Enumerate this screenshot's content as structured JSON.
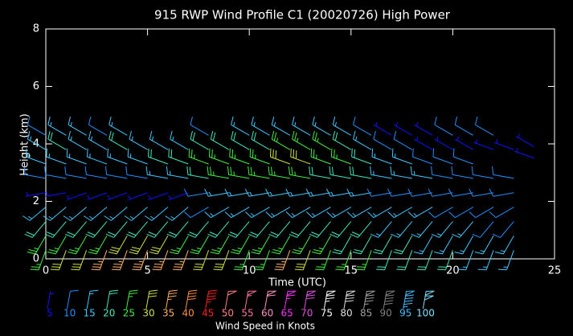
{
  "chart_data": {
    "type": "wind-barb",
    "title": "915 RWP Wind Profile C1 (20020726) High Power",
    "x_label": "Time (UTC)",
    "y_label": "Height (km)",
    "xlim": [
      0,
      25
    ],
    "xticks": [
      0,
      5,
      10,
      15,
      20,
      25
    ],
    "ylim": [
      0,
      8
    ],
    "yticks": [
      0,
      2,
      4,
      6,
      8
    ],
    "legend_title": "Wind Speed in Knots",
    "legend": [
      {
        "value": 5,
        "color": "#1010ff"
      },
      {
        "value": 10,
        "color": "#2090ff"
      },
      {
        "value": 15,
        "color": "#40c8ff"
      },
      {
        "value": 20,
        "color": "#40e8c0"
      },
      {
        "value": 25,
        "color": "#40f040"
      },
      {
        "value": 30,
        "color": "#d0e040"
      },
      {
        "value": 35,
        "color": "#ffb060"
      },
      {
        "value": 40,
        "color": "#ff9040"
      },
      {
        "value": 45,
        "color": "#ff2020"
      },
      {
        "value": 50,
        "color": "#ff8080"
      },
      {
        "value": 55,
        "color": "#ff70a0"
      },
      {
        "value": 60,
        "color": "#ff90c0"
      },
      {
        "value": 65,
        "color": "#ff30ff"
      },
      {
        "value": 70,
        "color": "#e050e0"
      },
      {
        "value": 75,
        "color": "#ffffff"
      },
      {
        "value": 80,
        "color": "#e0e0e0"
      },
      {
        "value": 85,
        "color": "#a0a0a0"
      },
      {
        "value": 90,
        "color": "#808080"
      },
      {
        "value": 95,
        "color": "#40c0ff"
      },
      {
        "value": 100,
        "color": "#80e0ff"
      }
    ],
    "columns": [
      {
        "x": 0,
        "levels": [
          [
            0.3,
            25,
            200
          ],
          [
            0.8,
            25,
            210
          ],
          [
            1.3,
            20,
            220
          ],
          [
            1.8,
            15,
            230
          ],
          [
            2.3,
            5,
            260
          ],
          [
            2.8,
            10,
            280
          ],
          [
            3.3,
            15,
            290
          ],
          [
            3.8,
            15,
            300
          ],
          [
            4.3,
            10,
            300
          ]
        ]
      },
      {
        "x": 1,
        "levels": [
          [
            0.3,
            30,
            200
          ],
          [
            0.8,
            25,
            210
          ],
          [
            1.3,
            20,
            220
          ],
          [
            1.8,
            15,
            230
          ],
          [
            2.3,
            5,
            260
          ],
          [
            2.8,
            10,
            280
          ],
          [
            3.3,
            15,
            290
          ],
          [
            3.8,
            20,
            300
          ],
          [
            4.3,
            15,
            300
          ]
        ]
      },
      {
        "x": 2,
        "levels": [
          [
            0.3,
            30,
            200
          ],
          [
            0.8,
            25,
            210
          ],
          [
            1.3,
            20,
            220
          ],
          [
            1.8,
            15,
            230
          ],
          [
            2.3,
            5,
            250
          ],
          [
            2.8,
            10,
            280
          ],
          [
            3.3,
            15,
            290
          ],
          [
            3.8,
            15,
            300
          ],
          [
            4.3,
            15,
            300
          ]
        ]
      },
      {
        "x": 3,
        "levels": [
          [
            0.3,
            35,
            200
          ],
          [
            0.8,
            25,
            210
          ],
          [
            1.3,
            20,
            220
          ],
          [
            1.8,
            15,
            230
          ],
          [
            2.3,
            5,
            250
          ],
          [
            2.8,
            10,
            280
          ],
          [
            3.3,
            15,
            290
          ],
          [
            3.8,
            15,
            300
          ],
          [
            4.3,
            10,
            300
          ]
        ]
      },
      {
        "x": 4,
        "levels": [
          [
            0.3,
            35,
            200
          ],
          [
            0.8,
            30,
            210
          ],
          [
            1.3,
            20,
            220
          ],
          [
            1.8,
            15,
            230
          ],
          [
            2.3,
            5,
            250
          ],
          [
            2.8,
            10,
            280
          ],
          [
            3.3,
            15,
            290
          ],
          [
            3.8,
            20,
            300
          ],
          [
            4.3,
            15,
            300
          ]
        ]
      },
      {
        "x": 5,
        "levels": [
          [
            0.3,
            35,
            200
          ],
          [
            0.8,
            30,
            210
          ],
          [
            1.3,
            20,
            220
          ],
          [
            1.8,
            15,
            230
          ],
          [
            2.3,
            5,
            250
          ],
          [
            2.8,
            10,
            280
          ],
          [
            3.3,
            15,
            290
          ],
          [
            3.8,
            15,
            300
          ]
        ]
      },
      {
        "x": 6,
        "levels": [
          [
            0.3,
            35,
            200
          ],
          [
            0.8,
            30,
            210
          ],
          [
            1.3,
            20,
            220
          ],
          [
            1.8,
            15,
            230
          ],
          [
            2.3,
            5,
            250
          ],
          [
            2.8,
            15,
            280
          ],
          [
            3.3,
            20,
            290
          ],
          [
            3.8,
            15,
            300
          ]
        ]
      },
      {
        "x": 7,
        "levels": [
          [
            0.3,
            35,
            200
          ],
          [
            0.8,
            25,
            210
          ],
          [
            1.3,
            20,
            220
          ],
          [
            1.8,
            15,
            230
          ],
          [
            2.3,
            5,
            250
          ],
          [
            2.8,
            15,
            280
          ],
          [
            3.3,
            20,
            290
          ],
          [
            3.8,
            15,
            300
          ]
        ]
      },
      {
        "x": 8,
        "levels": [
          [
            0.3,
            30,
            200
          ],
          [
            0.8,
            25,
            210
          ],
          [
            1.3,
            20,
            220
          ],
          [
            1.8,
            10,
            240
          ],
          [
            2.3,
            10,
            260
          ],
          [
            2.8,
            20,
            280
          ],
          [
            3.3,
            25,
            290
          ],
          [
            3.8,
            20,
            300
          ],
          [
            4.3,
            10,
            300
          ]
        ]
      },
      {
        "x": 9,
        "levels": [
          [
            0.3,
            30,
            200
          ],
          [
            0.8,
            25,
            210
          ],
          [
            1.3,
            20,
            220
          ],
          [
            1.8,
            15,
            240
          ],
          [
            2.3,
            15,
            260
          ],
          [
            2.8,
            25,
            280
          ],
          [
            3.3,
            25,
            290
          ],
          [
            3.8,
            20,
            300
          ]
        ]
      },
      {
        "x": 10,
        "levels": [
          [
            0.3,
            25,
            200
          ],
          [
            0.8,
            25,
            210
          ],
          [
            1.3,
            20,
            220
          ],
          [
            1.8,
            15,
            240
          ],
          [
            2.3,
            15,
            260
          ],
          [
            2.8,
            25,
            280
          ],
          [
            3.3,
            25,
            290
          ],
          [
            3.8,
            20,
            300
          ],
          [
            4.3,
            15,
            300
          ]
        ]
      },
      {
        "x": 11,
        "levels": [
          [
            0.3,
            25,
            200
          ],
          [
            0.8,
            25,
            210
          ],
          [
            1.3,
            20,
            220
          ],
          [
            1.8,
            15,
            240
          ],
          [
            2.3,
            15,
            260
          ],
          [
            2.8,
            25,
            280
          ],
          [
            3.3,
            25,
            290
          ],
          [
            3.8,
            20,
            300
          ],
          [
            4.3,
            15,
            300
          ]
        ]
      },
      {
        "x": 12,
        "levels": [
          [
            0.3,
            35,
            200
          ],
          [
            0.8,
            25,
            210
          ],
          [
            1.3,
            20,
            220
          ],
          [
            1.8,
            15,
            240
          ],
          [
            2.3,
            15,
            260
          ],
          [
            2.8,
            25,
            280
          ],
          [
            3.3,
            30,
            290
          ],
          [
            3.8,
            25,
            300
          ],
          [
            4.3,
            15,
            300
          ]
        ]
      },
      {
        "x": 13,
        "levels": [
          [
            0.3,
            30,
            200
          ],
          [
            0.8,
            25,
            210
          ],
          [
            1.3,
            20,
            220
          ],
          [
            1.8,
            15,
            240
          ],
          [
            2.3,
            15,
            260
          ],
          [
            2.8,
            25,
            280
          ],
          [
            3.3,
            30,
            290
          ],
          [
            3.8,
            25,
            300
          ],
          [
            4.3,
            15,
            300
          ]
        ]
      },
      {
        "x": 14,
        "levels": [
          [
            0.3,
            25,
            200
          ],
          [
            0.8,
            25,
            210
          ],
          [
            1.3,
            20,
            220
          ],
          [
            1.8,
            15,
            240
          ],
          [
            2.3,
            15,
            260
          ],
          [
            2.8,
            20,
            280
          ],
          [
            3.3,
            25,
            290
          ],
          [
            3.8,
            25,
            300
          ],
          [
            4.3,
            15,
            300
          ]
        ]
      },
      {
        "x": 15,
        "levels": [
          [
            0.3,
            25,
            200
          ],
          [
            0.8,
            20,
            210
          ],
          [
            1.3,
            20,
            220
          ],
          [
            1.8,
            15,
            240
          ],
          [
            2.3,
            15,
            260
          ],
          [
            2.8,
            20,
            280
          ],
          [
            3.3,
            25,
            290
          ],
          [
            3.8,
            20,
            300
          ],
          [
            4.3,
            15,
            300
          ]
        ]
      },
      {
        "x": 16,
        "levels": [
          [
            0.3,
            25,
            200
          ],
          [
            0.8,
            20,
            210
          ],
          [
            1.3,
            20,
            220
          ],
          [
            1.8,
            15,
            240
          ],
          [
            2.3,
            15,
            260
          ],
          [
            2.8,
            20,
            280
          ],
          [
            3.3,
            20,
            290
          ],
          [
            3.8,
            15,
            300
          ],
          [
            4.3,
            10,
            300
          ]
        ]
      },
      {
        "x": 17,
        "levels": [
          [
            0.3,
            20,
            200
          ],
          [
            0.8,
            20,
            210
          ],
          [
            1.3,
            15,
            220
          ],
          [
            1.8,
            15,
            240
          ],
          [
            2.3,
            10,
            260
          ],
          [
            2.8,
            15,
            280
          ],
          [
            3.3,
            15,
            290
          ],
          [
            3.8,
            10,
            300
          ],
          [
            4.3,
            5,
            300
          ]
        ]
      },
      {
        "x": 18,
        "levels": [
          [
            0.3,
            20,
            200
          ],
          [
            0.8,
            20,
            210
          ],
          [
            1.3,
            15,
            220
          ],
          [
            1.8,
            15,
            240
          ],
          [
            2.3,
            10,
            260
          ],
          [
            2.8,
            15,
            280
          ],
          [
            3.3,
            15,
            290
          ],
          [
            3.8,
            10,
            300
          ],
          [
            4.3,
            5,
            300
          ]
        ]
      },
      {
        "x": 19,
        "levels": [
          [
            0.3,
            20,
            200
          ],
          [
            0.8,
            15,
            210
          ],
          [
            1.3,
            15,
            220
          ],
          [
            1.8,
            15,
            240
          ],
          [
            2.3,
            10,
            260
          ],
          [
            2.8,
            15,
            280
          ],
          [
            3.3,
            10,
            290
          ],
          [
            3.8,
            5,
            300
          ],
          [
            4.3,
            5,
            300
          ]
        ]
      },
      {
        "x": 20,
        "levels": [
          [
            0.3,
            20,
            200
          ],
          [
            0.8,
            15,
            210
          ],
          [
            1.3,
            15,
            220
          ],
          [
            1.8,
            10,
            240
          ],
          [
            2.3,
            10,
            260
          ],
          [
            2.8,
            10,
            280
          ],
          [
            3.3,
            10,
            290
          ],
          [
            3.8,
            5,
            300
          ],
          [
            4.3,
            10,
            300
          ]
        ]
      },
      {
        "x": 21,
        "levels": [
          [
            0.3,
            15,
            200
          ],
          [
            0.8,
            15,
            210
          ],
          [
            1.3,
            15,
            220
          ],
          [
            1.8,
            10,
            240
          ],
          [
            2.3,
            10,
            260
          ],
          [
            2.8,
            10,
            280
          ],
          [
            3.3,
            10,
            290
          ],
          [
            3.8,
            5,
            300
          ],
          [
            4.3,
            10,
            300
          ]
        ]
      },
      {
        "x": 22,
        "levels": [
          [
            0.3,
            15,
            200
          ],
          [
            0.8,
            15,
            210
          ],
          [
            1.3,
            10,
            220
          ],
          [
            1.8,
            10,
            240
          ],
          [
            2.3,
            10,
            260
          ],
          [
            2.8,
            10,
            280
          ],
          [
            3.8,
            5,
            290
          ],
          [
            4.3,
            10,
            300
          ]
        ]
      },
      {
        "x": 23,
        "levels": [
          [
            0.3,
            15,
            200
          ],
          [
            0.8,
            15,
            210
          ],
          [
            1.3,
            10,
            220
          ],
          [
            1.8,
            10,
            240
          ],
          [
            2.3,
            10,
            260
          ],
          [
            2.8,
            10,
            280
          ],
          [
            3.8,
            5,
            290
          ]
        ]
      },
      {
        "x": 24,
        "levels": [
          [
            3.5,
            5,
            290
          ],
          [
            3.9,
            5,
            300
          ]
        ]
      }
    ]
  }
}
